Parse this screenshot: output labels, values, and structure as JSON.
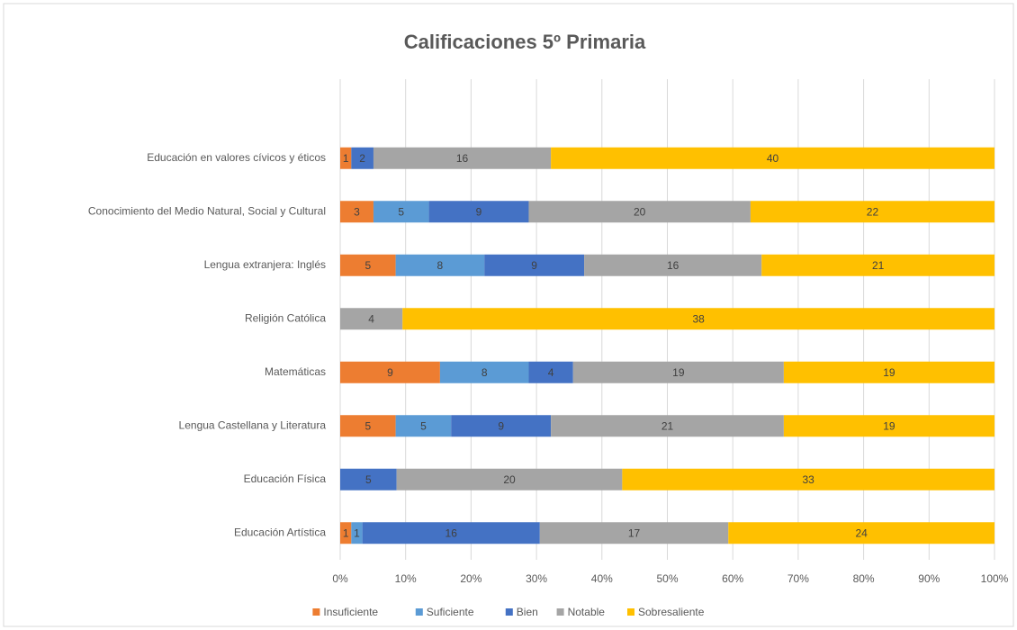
{
  "chart_data": {
    "type": "bar",
    "orientation": "horizontal",
    "stacked": "percent",
    "title": "Calificaciones 5º Primaria",
    "categories": [
      "Educación en valores cívicos y éticos",
      "Conocimiento del Medio Natural, Social y Cultural",
      "Lengua extranjera: Inglés",
      "Religión Católica",
      "Matemáticas",
      "Lengua Castellana y Literatura",
      "Educación Física",
      "Educación Artística"
    ],
    "series": [
      {
        "name": "Insuficiente",
        "color": "#ed7d31",
        "values": [
          1,
          3,
          5,
          null,
          9,
          5,
          null,
          1
        ]
      },
      {
        "name": "Suficiente",
        "color": "#5b9bd5",
        "values": [
          null,
          5,
          8,
          null,
          8,
          5,
          null,
          1
        ]
      },
      {
        "name": "Bien",
        "color": "#4472c4",
        "values": [
          2,
          9,
          9,
          null,
          4,
          9,
          5,
          16
        ]
      },
      {
        "name": "Notable",
        "color": "#a5a5a5",
        "values": [
          16,
          20,
          16,
          4,
          19,
          21,
          20,
          17
        ]
      },
      {
        "name": "Sobresaliente",
        "color": "#ffc000",
        "values": [
          40,
          22,
          21,
          38,
          19,
          19,
          33,
          24
        ]
      }
    ],
    "xlim": [
      0,
      100
    ],
    "xticks": [
      {
        "value": 0,
        "label": "0%"
      },
      {
        "value": 10,
        "label": "10%"
      },
      {
        "value": 20,
        "label": "20%"
      },
      {
        "value": 30,
        "label": "30%"
      },
      {
        "value": 40,
        "label": "40%"
      },
      {
        "value": 50,
        "label": "50%"
      },
      {
        "value": 60,
        "label": "60%"
      },
      {
        "value": 70,
        "label": "70%"
      },
      {
        "value": 80,
        "label": "80%"
      },
      {
        "value": 90,
        "label": "90%"
      },
      {
        "value": 100,
        "label": "100%"
      }
    ],
    "grid": true,
    "legend": "bottom"
  }
}
